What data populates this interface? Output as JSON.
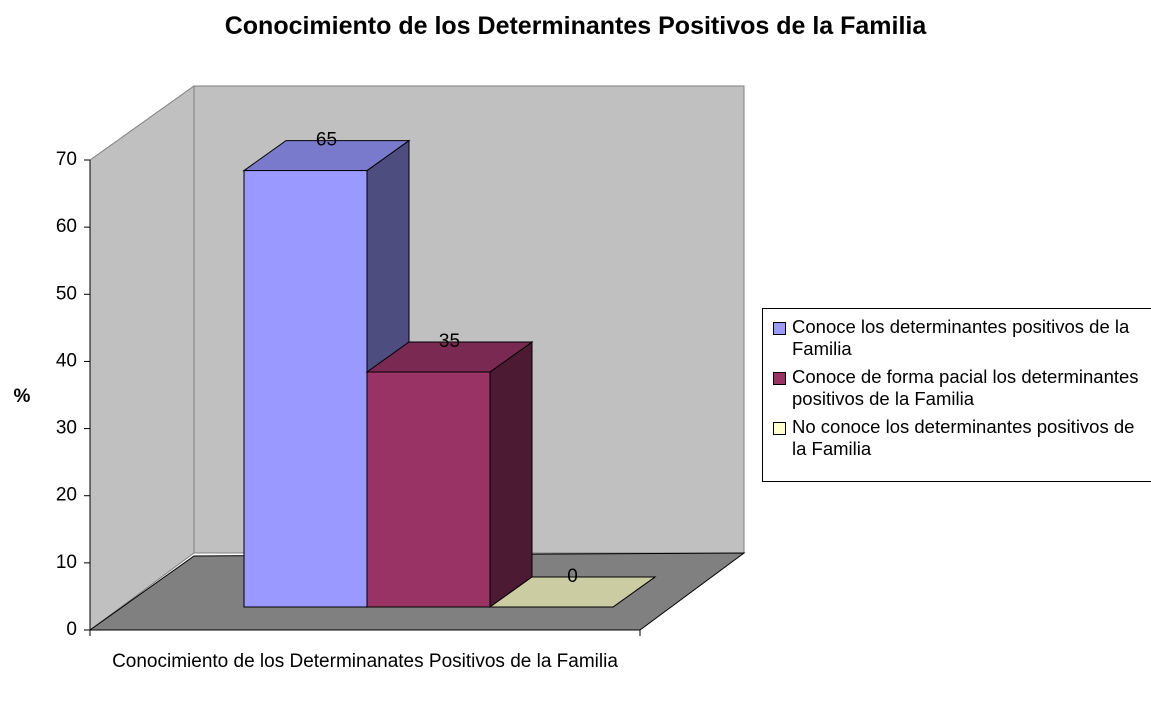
{
  "chart_data": {
    "type": "bar3d",
    "title": "Conocimiento de los Determinantes Positivos de la Familia",
    "y_label": "%",
    "categories": [
      "Conocimiento de los Determinanates Positivos de la Familia"
    ],
    "series": [
      {
        "name": "Conoce los determinantes positivos de la Familia",
        "color": "#9999FF",
        "values": [
          65
        ]
      },
      {
        "name": "Conoce de forma pacial los determinantes positivos de la Familia",
        "color": "#993366",
        "values": [
          35
        ]
      },
      {
        "name": "No conoce los determinantes positivos de la Familia",
        "color": "#FFFFCC",
        "values": [
          0
        ]
      }
    ],
    "ylim": [
      0,
      70
    ],
    "yticks": [
      0,
      10,
      20,
      30,
      40,
      50,
      60,
      70
    ],
    "legend": "right",
    "wall_color": "#C0C0C0",
    "floor_color": "#808080"
  }
}
